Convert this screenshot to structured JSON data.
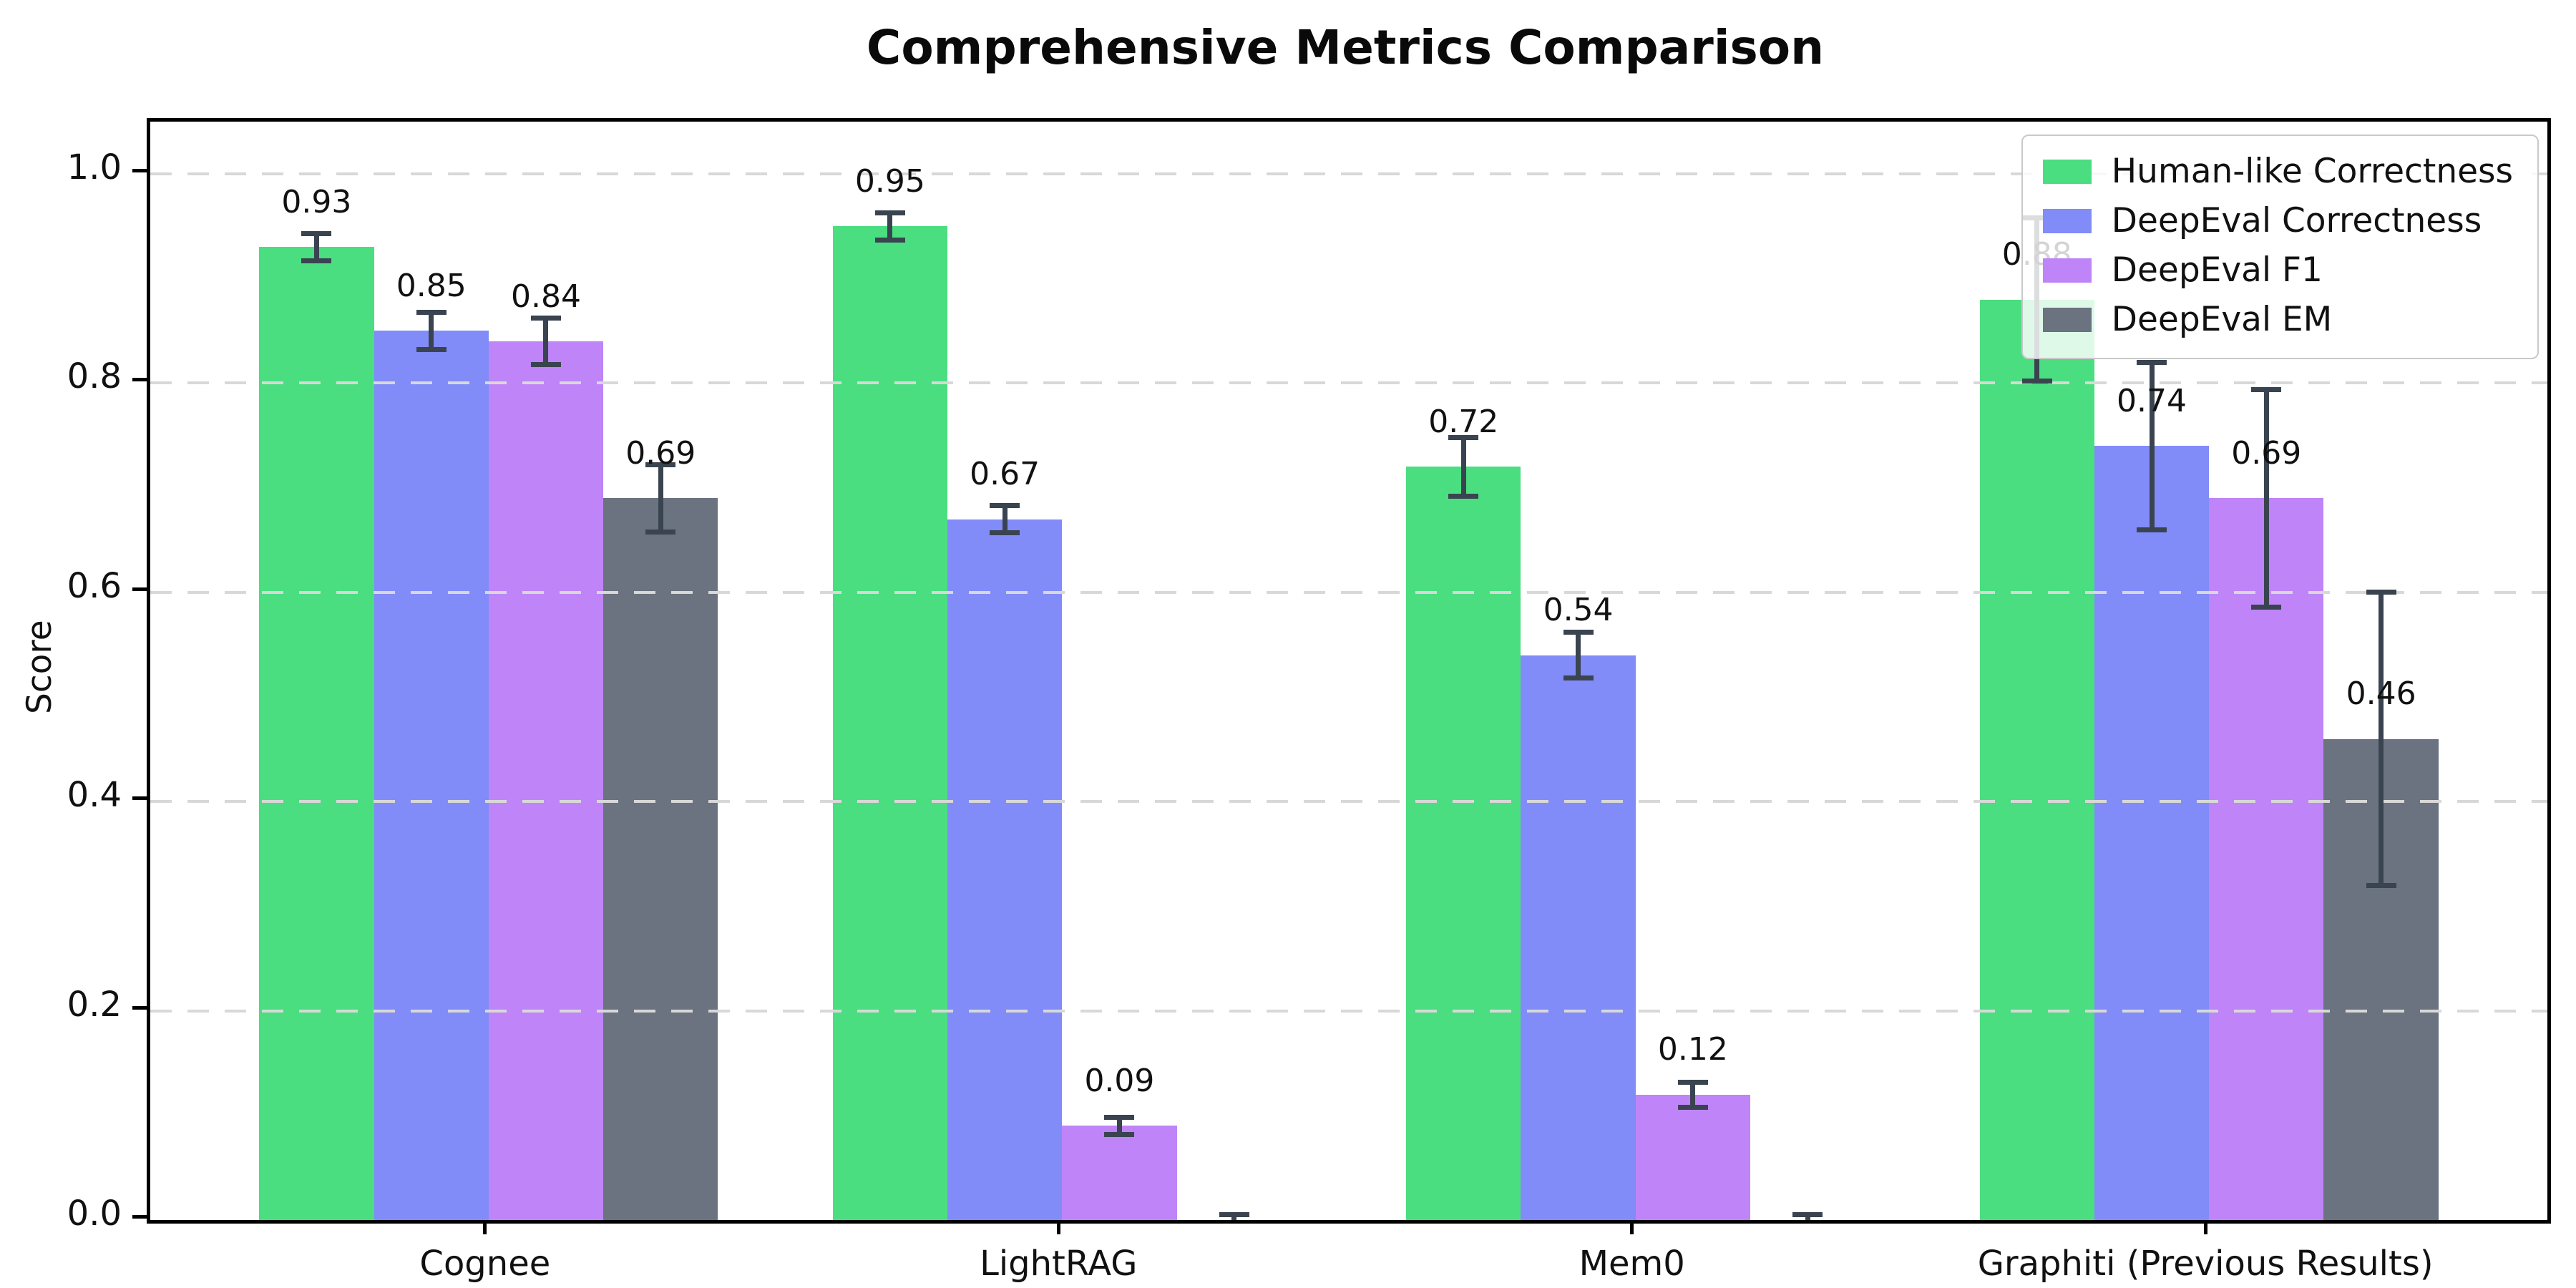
{
  "title": "Comprehensive Metrics Comparison",
  "chart_data": {
    "type": "bar",
    "title": "Comprehensive Metrics Comparison",
    "xlabel": "",
    "ylabel": "Score",
    "ylim": [
      0,
      1.05
    ],
    "yticks": [
      "0.0",
      "0.2",
      "0.4",
      "0.6",
      "0.8",
      "1.0"
    ],
    "grid": "horizontal dashed gridlines at each y tick",
    "legend_position": "upper right",
    "categories": [
      "Cognee",
      "LightRAG",
      "Mem0",
      "Graphiti (Previous Results)"
    ],
    "series": [
      {
        "name": "Human-like Correctness",
        "color": "#4ade80",
        "values": [
          0.93,
          0.95,
          0.72,
          0.88
        ],
        "errors": [
          0.013,
          0.013,
          0.028,
          0.078
        ],
        "labels": [
          "0.93",
          "0.95",
          "0.72",
          "0.88"
        ]
      },
      {
        "name": "DeepEval Correctness",
        "color": "#818cf8",
        "values": [
          0.85,
          0.67,
          0.54,
          0.74
        ],
        "errors": [
          0.018,
          0.013,
          0.022,
          0.08
        ],
        "labels": [
          "0.85",
          "0.67",
          "0.54",
          "0.74"
        ]
      },
      {
        "name": "DeepEval F1",
        "color": "#bf84f7",
        "values": [
          0.84,
          0.09,
          0.12,
          0.69
        ],
        "errors": [
          0.022,
          0.008,
          0.012,
          0.104
        ],
        "labels": [
          "0.84",
          "0.09",
          "0.12",
          "0.69"
        ]
      },
      {
        "name": "DeepEval EM",
        "color": "#6b7280",
        "values": [
          0.69,
          0.0,
          0.0,
          0.46
        ],
        "errors": [
          0.032,
          0.005,
          0.005,
          0.14
        ],
        "labels": [
          "0.69",
          "",
          "",
          "0.46"
        ]
      }
    ],
    "error_bar_color": "#3a4450"
  }
}
